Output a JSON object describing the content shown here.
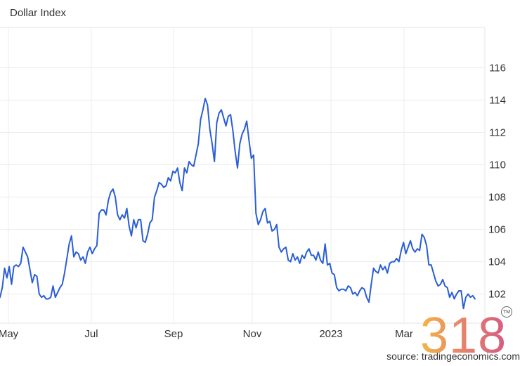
{
  "chart_data": {
    "type": "line",
    "title": "Dollar Index",
    "ylim": [
      100.2,
      118.5
    ],
    "yticks": [
      102,
      104,
      106,
      108,
      110,
      112,
      114,
      116
    ],
    "y_axis_side": "right",
    "grid": true,
    "x_ticks": [
      "May",
      "Jul",
      "Sep",
      "Nov",
      "2023",
      "Mar"
    ],
    "series": [
      {
        "color": "#2a5ed6",
        "values": [
          101.8,
          102.4,
          103.6,
          103.0,
          103.7,
          102.6,
          103.7,
          103.8,
          103.7,
          103.9,
          104.9,
          104.6,
          104.3,
          103.5,
          102.7,
          103.2,
          103.1,
          102.0,
          101.8,
          101.9,
          101.7,
          101.7,
          101.8,
          102.5,
          101.8,
          102.1,
          102.4,
          102.6,
          103.3,
          104.2,
          105.1,
          105.6,
          104.3,
          104.6,
          104.5,
          104.1,
          104.3,
          103.9,
          104.6,
          104.9,
          104.5,
          104.8,
          105.0,
          107.0,
          107.2,
          107.2,
          106.9,
          107.8,
          108.3,
          108.5,
          108.0,
          106.9,
          106.6,
          106.9,
          106.7,
          107.3,
          106.2,
          105.6,
          106.6,
          106.1,
          106.6,
          106.6,
          105.3,
          105.2,
          105.7,
          106.4,
          106.6,
          108.0,
          108.4,
          108.9,
          108.8,
          108.6,
          108.7,
          109.2,
          109.0,
          109.6,
          109.5,
          109.8,
          108.9,
          108.4,
          109.8,
          109.5,
          110.2,
          110.0,
          109.9,
          110.6,
          111.3,
          112.8,
          113.4,
          114.1,
          113.7,
          112.2,
          111.3,
          110.2,
          112.6,
          113.2,
          113.4,
          112.9,
          112.4,
          113.0,
          113.1,
          112.1,
          110.8,
          109.8,
          111.3,
          111.9,
          112.2,
          112.7,
          111.5,
          110.4,
          110.6,
          107.0,
          106.3,
          106.6,
          107.1,
          107.3,
          106.4,
          106.5,
          105.9,
          106.0,
          106.3,
          104.9,
          104.6,
          104.8,
          104.9,
          104.1,
          104.0,
          104.5,
          104.1,
          104.3,
          103.9,
          104.4,
          104.2,
          104.6,
          104.8,
          104.4,
          104.4,
          104.1,
          104.6,
          104.1,
          103.9,
          105.1,
          103.8,
          103.9,
          103.3,
          103.2,
          102.4,
          102.2,
          102.3,
          102.3,
          102.2,
          102.5,
          102.4,
          102.0,
          102.1,
          101.9,
          102.2,
          102.4,
          102.3,
          101.8,
          101.5,
          102.6,
          103.6,
          103.4,
          103.3,
          103.8,
          103.5,
          103.7,
          103.3,
          103.9,
          104.0,
          104.0,
          104.2,
          104.0,
          104.7,
          105.2,
          104.5,
          104.9,
          105.3,
          104.8,
          104.6,
          104.8,
          104.7,
          105.7,
          105.5,
          105.0,
          103.8,
          103.8,
          103.3,
          102.8,
          102.5,
          102.6,
          102.9,
          102.5,
          102.4,
          101.8,
          102.1,
          101.7,
          102.0,
          102.2,
          102.2,
          101.1,
          101.8,
          102.0,
          101.8,
          101.9,
          101.7
        ]
      }
    ]
  },
  "source_text": "source: tradingeconomics.com",
  "watermark": {
    "text": "318",
    "colors": [
      "#f4b63f",
      "#e6886a",
      "#d65a83"
    ]
  },
  "trademark_text": "TM"
}
